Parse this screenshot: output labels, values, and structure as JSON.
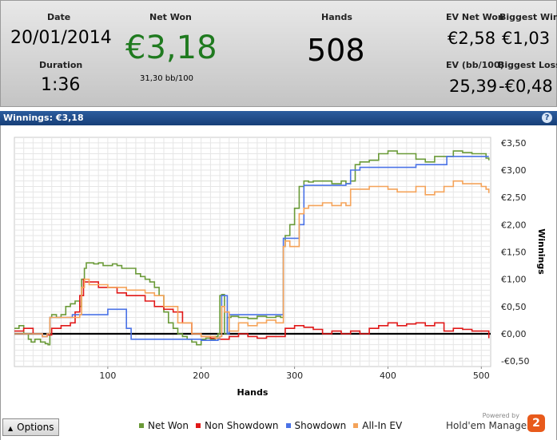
{
  "summary": {
    "date_label": "Date",
    "date_value": "20/01/2014",
    "duration_label": "Duration",
    "duration_value": "1:36",
    "netwon_label": "Net Won",
    "netwon_value": "€3,18",
    "netwon_sub": "31,30 bb/100",
    "hands_label": "Hands",
    "hands_value": "508",
    "evnetwon_label": "EV Net Won",
    "evnetwon_value": "€2,58",
    "biggestwin_label": "Biggest Win",
    "biggestwin_value": "€1,03",
    "evbb_label": "EV (bb/100)",
    "evbb_value": "25,39",
    "biggestloss_label": "Biggest Loss",
    "biggestloss_value": "-€0,48"
  },
  "chart_title": "Winnings: €3,18",
  "help_glyph": "?",
  "options": {
    "label": "Options"
  },
  "brand": {
    "powered": "Powered by",
    "name": "Hold'em Manager",
    "logo": "2"
  },
  "colors": {
    "netwon": "#6a9a38",
    "nonshowdown": "#e01818",
    "showdown": "#4a72e6",
    "allinev": "#f4a35a",
    "positive": "#1f7a1f"
  },
  "chart_data": {
    "type": "line",
    "xlabel": "Hands",
    "ylabel": "Winnings",
    "xlim": [
      0,
      510
    ],
    "ylim": [
      -0.6,
      3.6
    ],
    "xticks": [
      100,
      200,
      300,
      400,
      500
    ],
    "yticks": [
      3.5,
      3.0,
      2.5,
      2.0,
      1.5,
      1.0,
      0.5,
      0.0,
      -0.5
    ],
    "ytick_labels": [
      "€3,50",
      "€3,00",
      "€2,50",
      "€2,00",
      "€1,50",
      "€1,00",
      "€0,50",
      "€0,00",
      "-€0,50"
    ],
    "grid": true,
    "legend_position": "bottom",
    "series": [
      {
        "name": "Net Won",
        "color": "#6a9a38",
        "x": [
          0,
          5,
          10,
          15,
          18,
          22,
          28,
          33,
          36,
          38,
          40,
          45,
          50,
          55,
          60,
          65,
          70,
          72,
          75,
          77,
          80,
          85,
          90,
          95,
          100,
          105,
          110,
          115,
          120,
          125,
          130,
          135,
          140,
          145,
          150,
          155,
          160,
          165,
          170,
          175,
          180,
          185,
          190,
          195,
          200,
          205,
          210,
          215,
          218,
          220,
          222,
          225,
          228,
          232,
          240,
          250,
          260,
          270,
          280,
          285,
          288,
          290,
          295,
          300,
          305,
          310,
          315,
          320,
          330,
          340,
          350,
          355,
          360,
          365,
          370,
          380,
          390,
          400,
          410,
          420,
          430,
          440,
          450,
          460,
          470,
          480,
          490,
          500,
          505,
          508
        ],
        "y": [
          0.1,
          0.15,
          0.0,
          -0.1,
          -0.15,
          -0.1,
          -0.15,
          -0.18,
          -0.2,
          0.3,
          0.35,
          0.3,
          0.35,
          0.5,
          0.55,
          0.6,
          0.5,
          1.0,
          1.2,
          1.3,
          1.3,
          1.28,
          1.3,
          1.25,
          1.25,
          1.28,
          1.25,
          1.2,
          1.2,
          1.2,
          1.1,
          1.05,
          1.0,
          0.95,
          0.85,
          0.7,
          0.4,
          0.2,
          0.1,
          0.0,
          -0.05,
          -0.1,
          -0.15,
          -0.2,
          -0.1,
          -0.08,
          -0.1,
          -0.05,
          0.0,
          0.7,
          0.72,
          0.0,
          0.3,
          0.32,
          0.3,
          0.28,
          0.32,
          0.3,
          0.32,
          0.3,
          1.6,
          1.8,
          2.0,
          2.3,
          2.7,
          2.8,
          2.78,
          2.8,
          2.8,
          2.75,
          2.8,
          2.75,
          2.8,
          3.1,
          3.15,
          3.18,
          3.3,
          3.35,
          3.3,
          3.3,
          3.2,
          3.15,
          3.25,
          3.25,
          3.35,
          3.32,
          3.3,
          3.3,
          3.22,
          3.18
        ]
      },
      {
        "name": "Non Showdown",
        "color": "#e01818",
        "x": [
          0,
          10,
          20,
          30,
          35,
          40,
          50,
          60,
          65,
          70,
          74,
          75,
          80,
          90,
          100,
          110,
          120,
          130,
          140,
          150,
          160,
          170,
          180,
          190,
          200,
          210,
          220,
          230,
          240,
          250,
          260,
          270,
          280,
          290,
          300,
          310,
          320,
          330,
          340,
          350,
          360,
          370,
          380,
          390,
          400,
          410,
          420,
          430,
          440,
          450,
          460,
          470,
          480,
          490,
          500,
          508
        ],
        "y": [
          0.05,
          0.1,
          0.0,
          -0.05,
          -0.02,
          0.1,
          0.15,
          0.2,
          0.4,
          0.7,
          1.0,
          0.95,
          0.95,
          0.85,
          0.85,
          0.75,
          0.7,
          0.7,
          0.6,
          0.5,
          0.45,
          0.4,
          0.2,
          0.0,
          -0.05,
          -0.08,
          -0.1,
          -0.05,
          0.0,
          -0.05,
          -0.08,
          -0.05,
          -0.05,
          0.1,
          0.15,
          0.12,
          0.08,
          0.0,
          0.05,
          0.0,
          0.05,
          0.0,
          0.1,
          0.15,
          0.2,
          0.15,
          0.18,
          0.2,
          0.15,
          0.2,
          0.05,
          0.1,
          0.08,
          0.05,
          0.05,
          -0.08
        ]
      },
      {
        "name": "Showdown",
        "color": "#4a72e6",
        "x": [
          0,
          20,
          30,
          35,
          38,
          40,
          60,
          62,
          80,
          95,
          100,
          115,
          118,
          120,
          122,
          125,
          155,
          160,
          175,
          180,
          190,
          200,
          215,
          218,
          220,
          222,
          225,
          228,
          230,
          250,
          270,
          285,
          288,
          300,
          305,
          310,
          315,
          320,
          330,
          340,
          350,
          355,
          360,
          370,
          380,
          390,
          400,
          420,
          430,
          440,
          445,
          460,
          463,
          470,
          480,
          490,
          500,
          508
        ],
        "y": [
          0.0,
          0.0,
          -0.05,
          0.0,
          0.3,
          0.3,
          0.3,
          0.35,
          0.35,
          0.35,
          0.45,
          0.45,
          0.45,
          0.1,
          0.1,
          -0.1,
          -0.1,
          -0.1,
          -0.1,
          -0.1,
          -0.1,
          -0.12,
          -0.12,
          -0.1,
          -0.05,
          0.7,
          0.7,
          0.0,
          0.35,
          0.35,
          0.35,
          0.35,
          1.75,
          1.75,
          2.0,
          2.72,
          2.72,
          2.72,
          2.72,
          2.72,
          2.72,
          2.75,
          3.0,
          3.05,
          3.05,
          3.05,
          3.05,
          3.05,
          3.1,
          3.1,
          3.1,
          3.1,
          3.25,
          3.25,
          3.25,
          3.25,
          3.25,
          3.25
        ]
      },
      {
        "name": "All-In EV",
        "color": "#f4a35a",
        "x": [
          0,
          20,
          30,
          35,
          38,
          40,
          60,
          70,
          72,
          75,
          80,
          100,
          120,
          140,
          150,
          160,
          175,
          190,
          200,
          215,
          220,
          222,
          225,
          230,
          240,
          250,
          260,
          270,
          280,
          285,
          288,
          290,
          295,
          300,
          305,
          310,
          315,
          330,
          340,
          350,
          355,
          360,
          370,
          380,
          390,
          400,
          410,
          420,
          430,
          440,
          450,
          460,
          470,
          480,
          490,
          500,
          505,
          508
        ],
        "y": [
          0.0,
          0.0,
          -0.05,
          0.0,
          0.3,
          0.3,
          0.3,
          0.35,
          0.85,
          1.0,
          0.9,
          0.85,
          0.8,
          0.75,
          0.7,
          0.5,
          0.2,
          0.0,
          -0.05,
          -0.08,
          -0.05,
          0.5,
          0.4,
          0.05,
          0.2,
          0.15,
          0.2,
          0.25,
          0.2,
          0.2,
          1.6,
          1.7,
          1.6,
          1.6,
          2.2,
          2.3,
          2.35,
          2.4,
          2.35,
          2.4,
          2.35,
          2.65,
          2.65,
          2.7,
          2.7,
          2.65,
          2.6,
          2.6,
          2.7,
          2.55,
          2.6,
          2.7,
          2.8,
          2.75,
          2.75,
          2.7,
          2.65,
          2.58
        ]
      }
    ]
  }
}
